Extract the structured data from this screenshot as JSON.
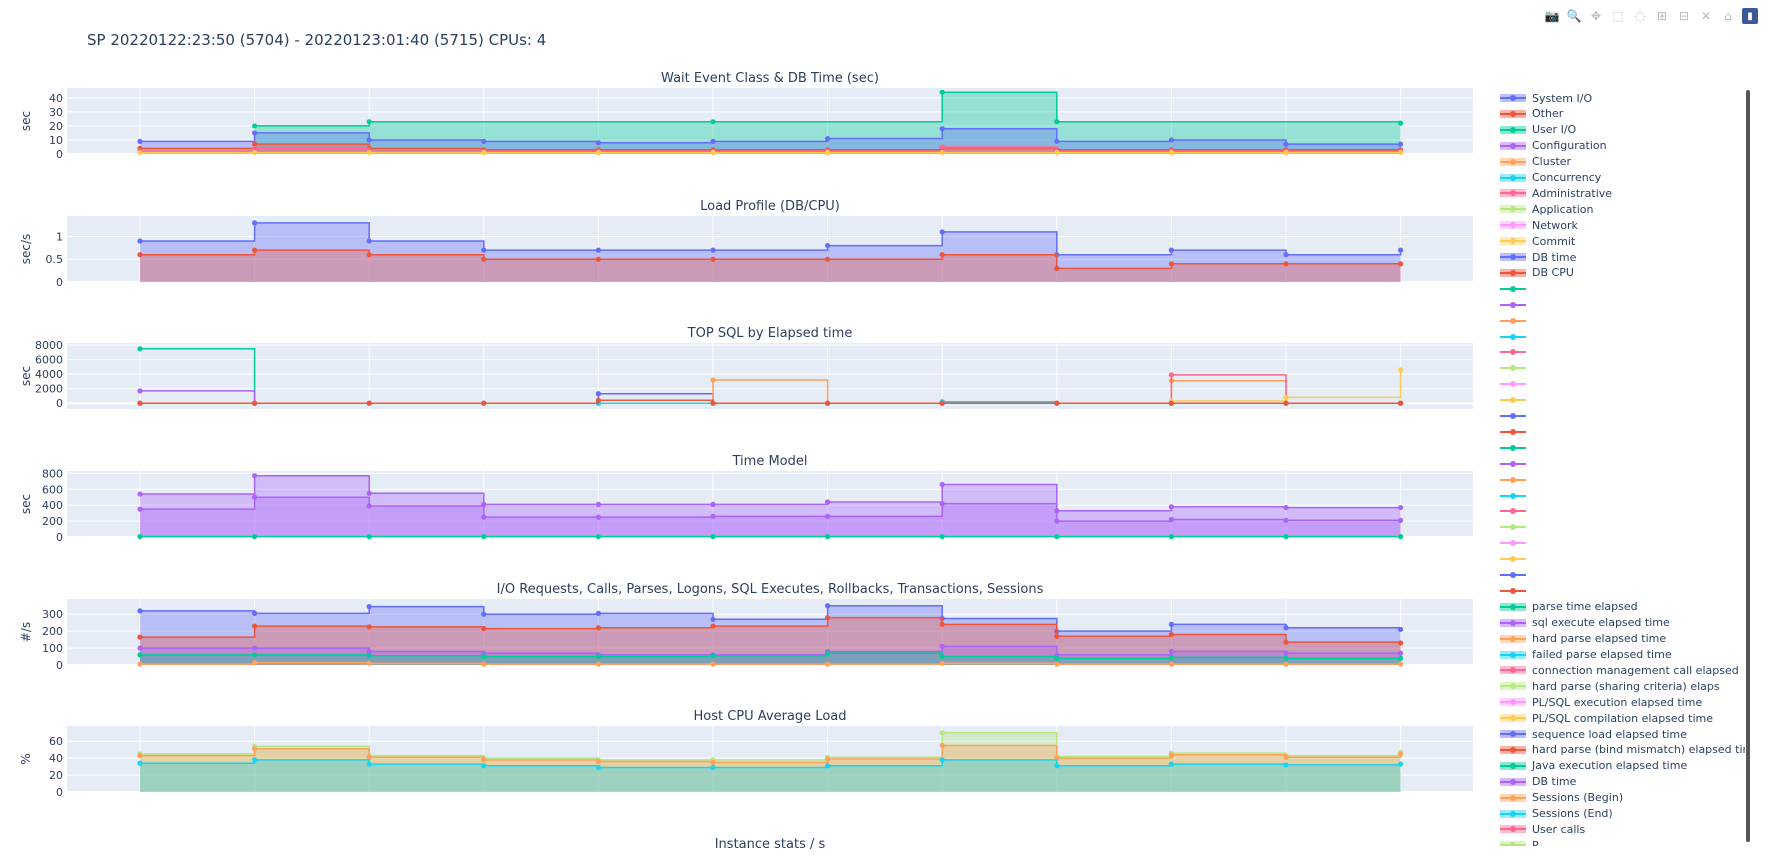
{
  "page": {
    "title": "SP 20220122:23:50 (5704) - 20220123:01:40 (5715) CPUs: 4"
  },
  "modebar": {
    "buttons": [
      {
        "name": "camera-icon",
        "glyph": "📷"
      },
      {
        "name": "zoom-icon",
        "glyph": "🔍"
      },
      {
        "name": "pan-icon",
        "glyph": "✥"
      },
      {
        "name": "box-select-icon",
        "glyph": "⬚"
      },
      {
        "name": "lasso-select-icon",
        "glyph": "◌"
      },
      {
        "name": "zoom-in-icon",
        "glyph": "⊞"
      },
      {
        "name": "zoom-out-icon",
        "glyph": "⊟"
      },
      {
        "name": "autoscale-icon",
        "glyph": "✕"
      },
      {
        "name": "home-icon",
        "glyph": "⌂"
      },
      {
        "name": "plotly-logo-icon",
        "glyph": "▮"
      }
    ]
  },
  "colors": {
    "blue": "#636efa",
    "red": "#ef553b",
    "green": "#00cc96",
    "purple": "#ab63fa",
    "orange": "#ffa15a",
    "cyan": "#19d3f3",
    "pink": "#ff6692",
    "lime": "#b6e880",
    "magenta": "#ff97ff",
    "yellow": "#fecb52",
    "plot_bg": "#e5ecf6",
    "grid": "#ffffff",
    "text": "#2a3f5f"
  },
  "legend": {
    "items": [
      {
        "label": "System I/O",
        "color": "#636efa",
        "fill": true
      },
      {
        "label": "Other",
        "color": "#ef553b",
        "fill": true
      },
      {
        "label": "User I/O",
        "color": "#00cc96",
        "fill": true
      },
      {
        "label": "Configuration",
        "color": "#ab63fa",
        "fill": true
      },
      {
        "label": "Cluster",
        "color": "#ffa15a",
        "fill": true
      },
      {
        "label": "Concurrency",
        "color": "#19d3f3",
        "fill": true
      },
      {
        "label": "Administrative",
        "color": "#ff6692",
        "fill": true
      },
      {
        "label": "Application",
        "color": "#b6e880",
        "fill": true
      },
      {
        "label": "Network",
        "color": "#ff97ff",
        "fill": true
      },
      {
        "label": "Commit",
        "color": "#fecb52",
        "fill": true
      },
      {
        "label": "DB time",
        "color": "#636efa",
        "fill": true
      },
      {
        "label": "DB CPU",
        "color": "#ef553b",
        "fill": true
      },
      {
        "label": "",
        "color": "#00cc96",
        "fill": false
      },
      {
        "label": "",
        "color": "#ab63fa",
        "fill": false
      },
      {
        "label": "",
        "color": "#ffa15a",
        "fill": false
      },
      {
        "label": "",
        "color": "#19d3f3",
        "fill": false
      },
      {
        "label": "",
        "color": "#ff6692",
        "fill": false
      },
      {
        "label": "",
        "color": "#b6e880",
        "fill": false
      },
      {
        "label": "",
        "color": "#ff97ff",
        "fill": false
      },
      {
        "label": "",
        "color": "#fecb52",
        "fill": false
      },
      {
        "label": "",
        "color": "#636efa",
        "fill": false
      },
      {
        "label": "",
        "color": "#ef553b",
        "fill": false
      },
      {
        "label": "",
        "color": "#00cc96",
        "fill": false
      },
      {
        "label": "",
        "color": "#ab63fa",
        "fill": false
      },
      {
        "label": "",
        "color": "#ffa15a",
        "fill": false
      },
      {
        "label": "",
        "color": "#19d3f3",
        "fill": false
      },
      {
        "label": "",
        "color": "#ff6692",
        "fill": false
      },
      {
        "label": "",
        "color": "#b6e880",
        "fill": false
      },
      {
        "label": "",
        "color": "#ff97ff",
        "fill": false
      },
      {
        "label": "",
        "color": "#fecb52",
        "fill": false
      },
      {
        "label": "",
        "color": "#636efa",
        "fill": false
      },
      {
        "label": "",
        "color": "#ef553b",
        "fill": false
      },
      {
        "label": "parse time elapsed",
        "color": "#00cc96",
        "fill": true
      },
      {
        "label": "sql execute elapsed time",
        "color": "#ab63fa",
        "fill": true
      },
      {
        "label": "hard parse elapsed time",
        "color": "#ffa15a",
        "fill": true
      },
      {
        "label": "failed parse elapsed time",
        "color": "#19d3f3",
        "fill": true
      },
      {
        "label": "connection management call elapsed",
        "color": "#ff6692",
        "fill": true
      },
      {
        "label": "hard parse (sharing criteria) elaps",
        "color": "#b6e880",
        "fill": true
      },
      {
        "label": "PL/SQL execution elapsed time",
        "color": "#ff97ff",
        "fill": true
      },
      {
        "label": "PL/SQL compilation elapsed time",
        "color": "#fecb52",
        "fill": true
      },
      {
        "label": "sequence load elapsed time",
        "color": "#636efa",
        "fill": true
      },
      {
        "label": "hard parse (bind mismatch) elapsed time",
        "color": "#ef553b",
        "fill": true
      },
      {
        "label": "Java execution elapsed time",
        "color": "#00cc96",
        "fill": true
      },
      {
        "label": "DB time",
        "color": "#ab63fa",
        "fill": true
      },
      {
        "label": "Sessions (Begin)",
        "color": "#ffa15a",
        "fill": true
      },
      {
        "label": "Sessions (End)",
        "color": "#19d3f3",
        "fill": true
      },
      {
        "label": "User calls",
        "color": "#ff6692",
        "fill": true
      },
      {
        "label": "P",
        "color": "#b6e880",
        "fill": true
      }
    ]
  },
  "chart_data": [
    {
      "type": "area",
      "title": "Wait Event Class & DB Time (sec)",
      "ylabel": "sec",
      "ylim": [
        0,
        47
      ],
      "yticks": [
        0,
        10,
        20,
        30,
        40
      ],
      "step": true,
      "stacked": false,
      "series": [
        {
          "name": "User I/O",
          "color": "#00cc96",
          "values": [
            null,
            20,
            23,
            null,
            null,
            23,
            null,
            44,
            23,
            null,
            null,
            22
          ]
        },
        {
          "name": "System I/O",
          "color": "#636efa",
          "values": [
            9,
            15,
            10,
            9,
            8,
            9,
            11,
            18,
            9,
            10,
            7,
            7
          ]
        },
        {
          "name": "Other",
          "color": "#ef553b",
          "values": [
            4,
            7,
            4,
            3,
            3,
            3,
            3,
            4,
            3,
            3,
            3,
            3
          ]
        },
        {
          "name": "Administrative",
          "color": "#ff6692",
          "values": [
            2,
            4,
            2,
            2,
            2,
            2,
            2,
            5,
            2,
            2,
            2,
            2
          ]
        },
        {
          "name": "Commit",
          "color": "#fecb52",
          "values": [
            1,
            1,
            1,
            1,
            1,
            1,
            1,
            1,
            1,
            1,
            1,
            1
          ]
        }
      ]
    },
    {
      "type": "area",
      "title": "Load Profile (DB/CPU)",
      "ylabel": "sec/s",
      "ylim": [
        0,
        1.45
      ],
      "yticks": [
        0,
        0.5,
        1
      ],
      "ytick_labels": [
        "0",
        "0.5",
        "1"
      ],
      "step": true,
      "stacked": false,
      "series": [
        {
          "name": "DB time",
          "color": "#636efa",
          "values": [
            0.9,
            1.3,
            0.9,
            0.7,
            0.7,
            0.7,
            0.8,
            1.1,
            0.6,
            0.7,
            0.6,
            0.7
          ]
        },
        {
          "name": "DB CPU",
          "color": "#ef553b",
          "values": [
            0.6,
            0.7,
            0.6,
            0.5,
            0.5,
            0.5,
            0.5,
            0.6,
            0.3,
            0.4,
            0.4,
            0.4
          ]
        }
      ]
    },
    {
      "type": "line",
      "title": "TOP SQL by Elapsed time",
      "ylabel": "sec",
      "ylim": [
        -800,
        8300
      ],
      "yticks": [
        0,
        2000,
        4000,
        6000,
        8000
      ],
      "step": true,
      "series": [
        {
          "color": "#00cc96",
          "values": [
            7500,
            0,
            0,
            0,
            0,
            0,
            0,
            0,
            0,
            0,
            0,
            0
          ]
        },
        {
          "color": "#ab63fa",
          "values": [
            1700,
            0,
            0,
            0,
            0,
            0,
            0,
            0,
            0,
            0,
            0,
            0
          ]
        },
        {
          "color": "#636efa",
          "values": [
            0,
            0,
            0,
            0,
            1300,
            0,
            0,
            0,
            0,
            0,
            0,
            0
          ]
        },
        {
          "color": "#ffa15a",
          "values": [
            0,
            0,
            0,
            0,
            0,
            3200,
            0,
            0,
            0,
            3100,
            0,
            0
          ]
        },
        {
          "color": "#ff6692",
          "values": [
            0,
            0,
            0,
            0,
            0,
            0,
            0,
            0,
            0,
            3900,
            0,
            0
          ]
        },
        {
          "color": "#fecb52",
          "values": [
            0,
            0,
            0,
            0,
            0,
            0,
            0,
            0,
            0,
            300,
            800,
            4600
          ]
        },
        {
          "color": "#19d3f3",
          "values": [
            0,
            0,
            0,
            0,
            0,
            0,
            0,
            200,
            0,
            0,
            0,
            0
          ]
        },
        {
          "color": "#ef553b",
          "values": [
            0,
            0,
            0,
            0,
            400,
            0,
            0,
            0,
            0,
            0,
            0,
            0
          ]
        }
      ]
    },
    {
      "type": "area",
      "title": "Time Model",
      "ylabel": "sec",
      "ylim": [
        0,
        830
      ],
      "yticks": [
        0,
        200,
        400,
        600,
        800
      ],
      "step": true,
      "stacked": false,
      "series": [
        {
          "name": "DB time",
          "color": "#ab63fa",
          "values": [
            540,
            770,
            550,
            410,
            410,
            410,
            440,
            660,
            330,
            380,
            370,
            370
          ]
        },
        {
          "name": "sql execute elapsed time",
          "color": "#ab63fa",
          "values": [
            350,
            500,
            390,
            250,
            250,
            260,
            260,
            420,
            200,
            220,
            210,
            210
          ]
        },
        {
          "name": "parse time elapsed",
          "color": "#00cc96",
          "values": [
            5,
            5,
            5,
            5,
            5,
            5,
            5,
            5,
            5,
            5,
            5,
            5
          ]
        }
      ]
    },
    {
      "type": "area",
      "title": "I/O Requests, Calls, Parses, Logons, SQL Executes, Rollbacks, Transactions, Sessions",
      "ylabel": "#/s",
      "ylim": [
        0,
        390
      ],
      "yticks": [
        0,
        100,
        200,
        300
      ],
      "step": true,
      "stacked": false,
      "series": [
        {
          "color": "#636efa",
          "values": [
            320,
            305,
            345,
            300,
            305,
            270,
            350,
            275,
            200,
            240,
            220,
            210
          ]
        },
        {
          "color": "#ef553b",
          "values": [
            165,
            230,
            225,
            215,
            220,
            230,
            280,
            240,
            170,
            180,
            135,
            130
          ]
        },
        {
          "color": "#ab63fa",
          "values": [
            100,
            100,
            80,
            70,
            60,
            60,
            80,
            110,
            60,
            80,
            70,
            70
          ]
        },
        {
          "color": "#00cc96",
          "values": [
            60,
            60,
            55,
            50,
            50,
            55,
            70,
            50,
            40,
            45,
            40,
            40
          ]
        },
        {
          "color": "#ffa15a",
          "values": [
            5,
            15,
            10,
            5,
            5,
            5,
            5,
            10,
            5,
            5,
            5,
            5
          ]
        }
      ]
    },
    {
      "type": "area",
      "title": "Host CPU Average Load",
      "ylabel": "%",
      "ylim": [
        0,
        78
      ],
      "yticks": [
        0,
        20,
        40,
        60
      ],
      "step": true,
      "stacked": false,
      "series": [
        {
          "color": "#b6e880",
          "values": [
            45,
            54,
            43,
            40,
            38,
            38,
            41,
            70,
            42,
            46,
            43,
            47
          ]
        },
        {
          "color": "#ffa15a",
          "values": [
            43,
            51,
            41,
            38,
            36,
            35,
            39,
            55,
            40,
            44,
            41,
            45
          ]
        },
        {
          "color": "#19d3f3",
          "values": [
            34,
            38,
            33,
            31,
            29,
            29,
            31,
            38,
            31,
            33,
            32,
            33
          ]
        }
      ]
    },
    {
      "type": "area",
      "title": "Instance stats / s",
      "ylabel": "",
      "series": []
    }
  ]
}
